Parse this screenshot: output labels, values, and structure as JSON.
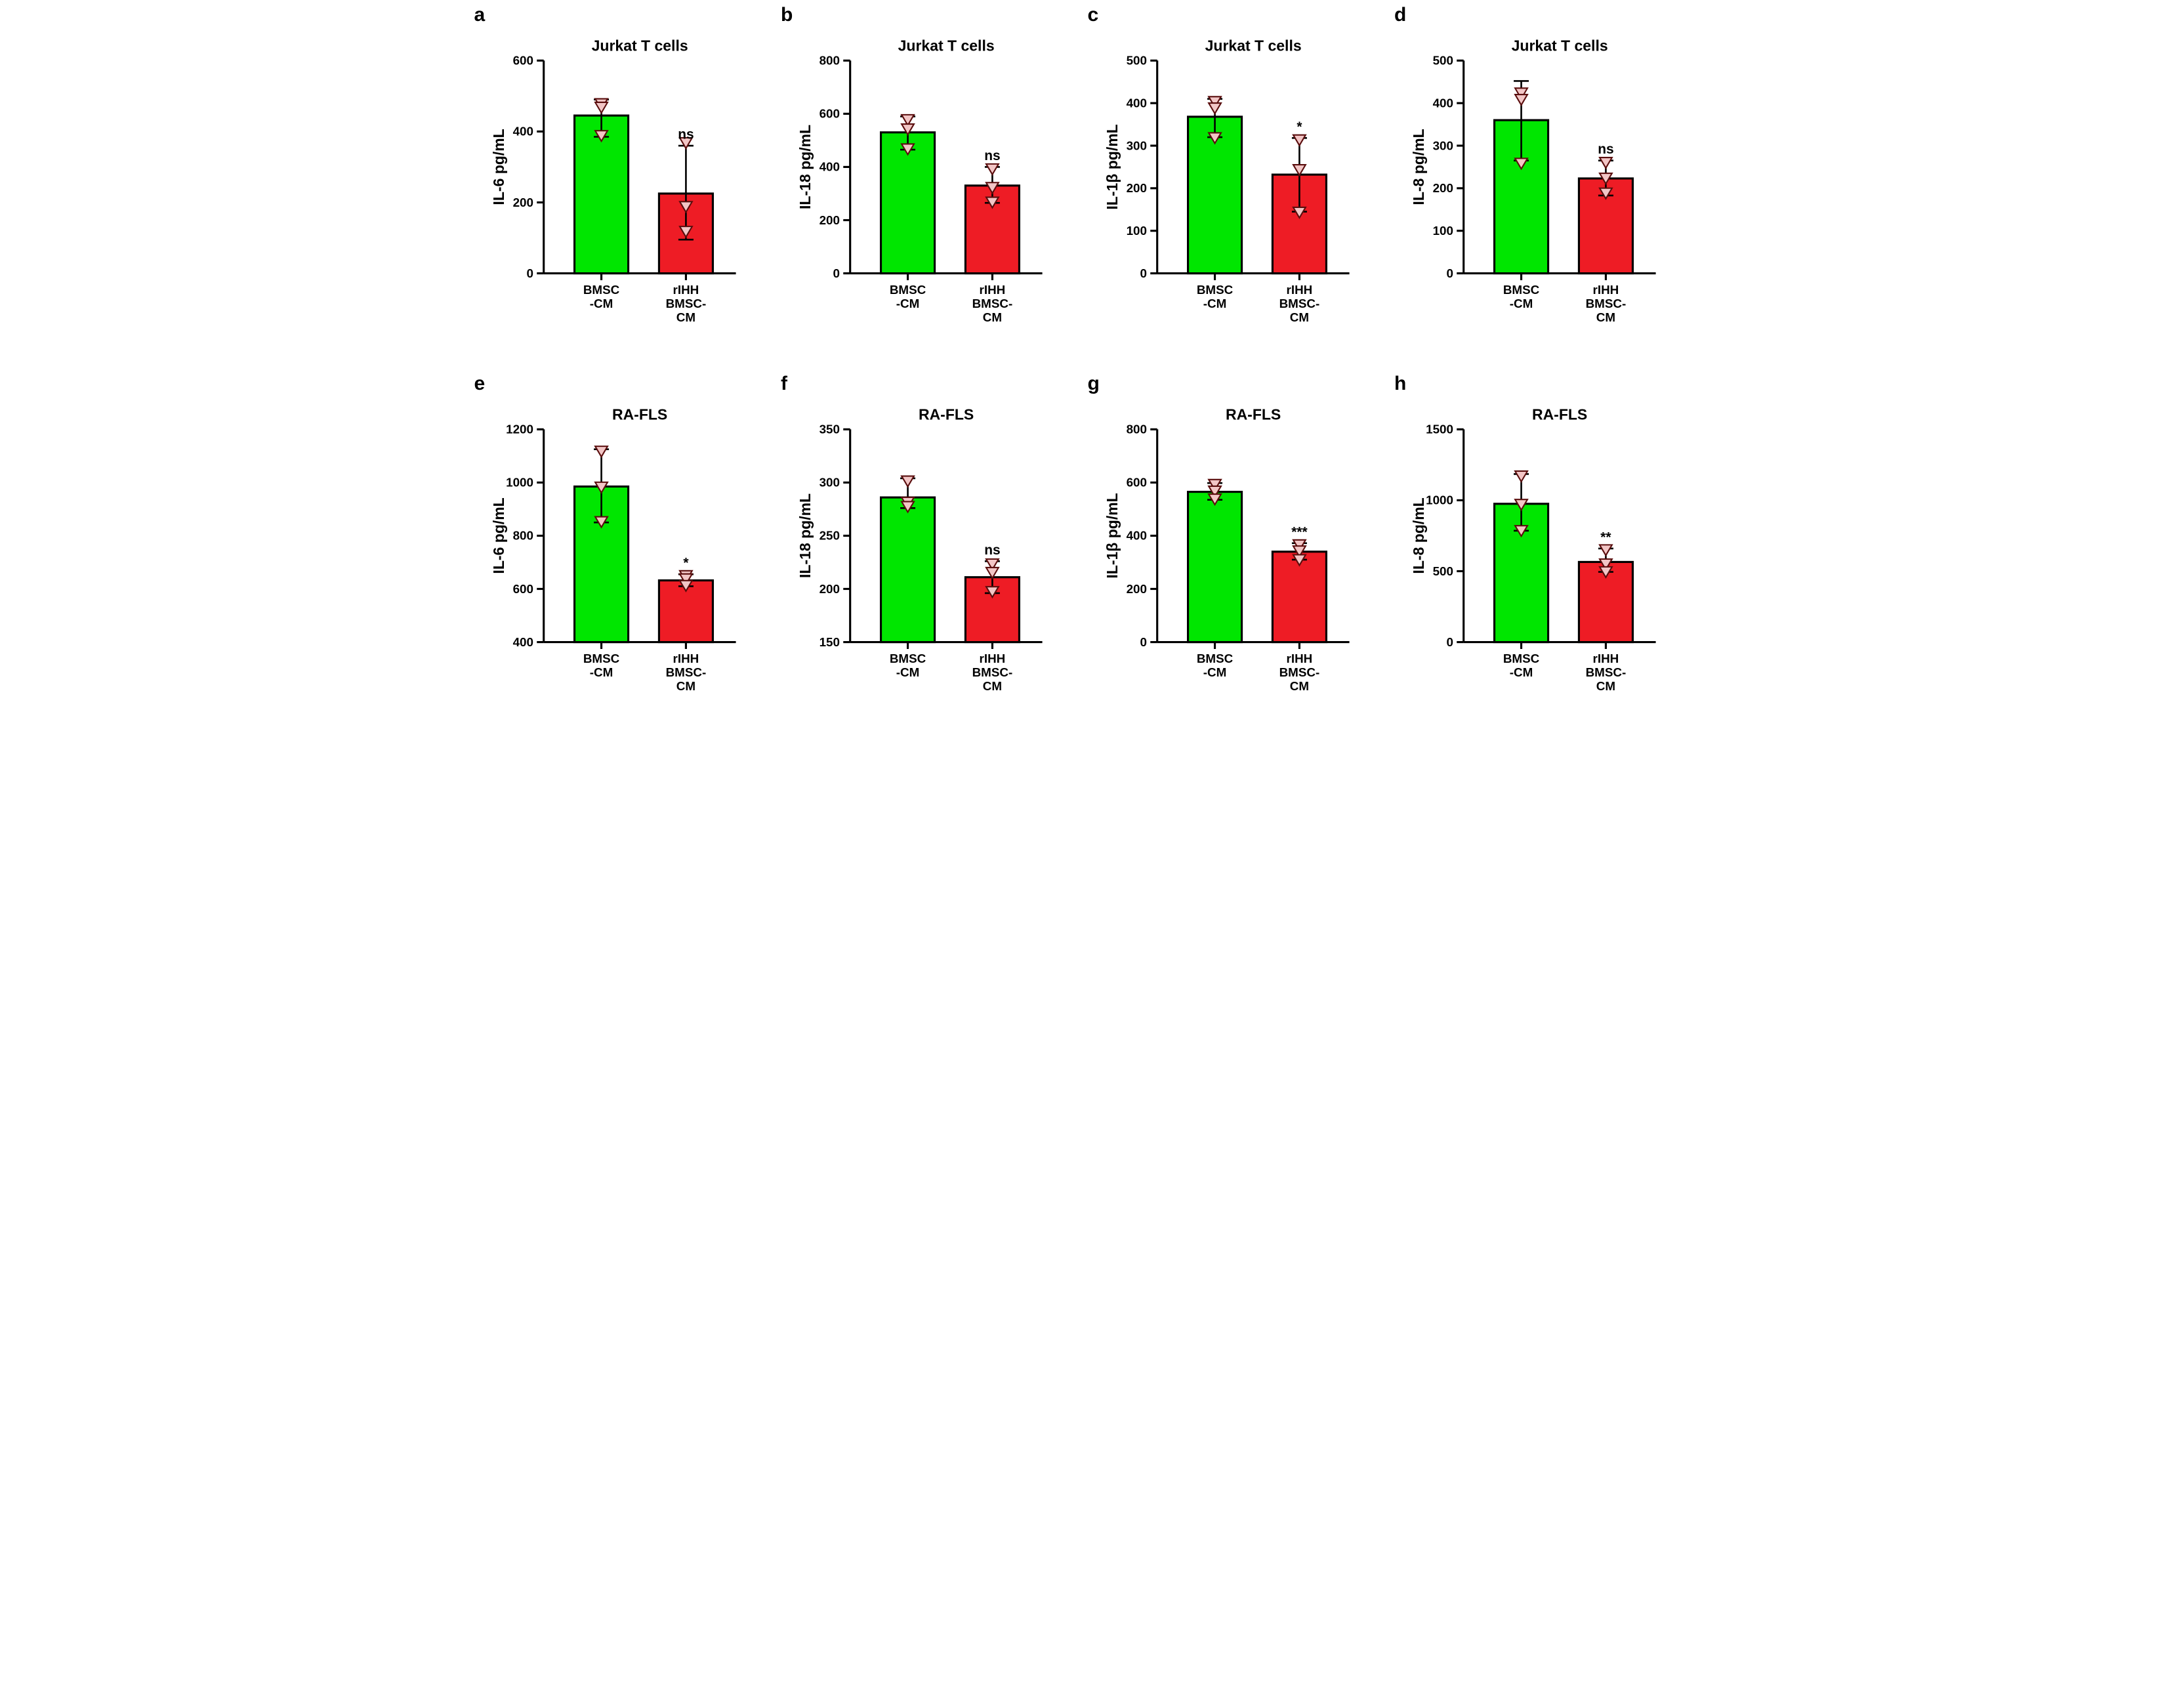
{
  "figure": {
    "panel_labels": [
      "a",
      "b",
      "c",
      "d",
      "e",
      "f",
      "g",
      "h"
    ],
    "xLabels": [
      "BMSC\n-CM",
      "rIHH\nBMSC-\nCM"
    ],
    "xLabelFontSize": 18,
    "tickFontSize": 18,
    "titleFontSize": 22,
    "sigFontSize": 20,
    "axisStroke": "#000000",
    "axisWidth": 3,
    "barBorder": "#000000",
    "barBorderWidth": 3,
    "bar1Color": "#00e600",
    "bar2Color": "#ee1c25",
    "markerFill": "#f2c6c6",
    "markerStroke": "#5a0d0d",
    "errWidth": 2.5,
    "panels": [
      {
        "letter": "a",
        "title": "Jurkat T cells",
        "ylabel": "IL-6 pg/mL",
        "ymin": 0,
        "ymax": 600,
        "ystep": 200,
        "bar1": {
          "mean": 445,
          "lo": 385,
          "hi": 490,
          "pts": [
            480,
            470,
            390
          ]
        },
        "bar2": {
          "mean": 225,
          "lo": 95,
          "hi": 360,
          "pts": [
            370,
            190,
            120
          ],
          "sig": "ns"
        }
      },
      {
        "letter": "b",
        "title": "Jurkat T cells",
        "ylabel": "IL-18 pg/mL",
        "ymin": 0,
        "ymax": 800,
        "ystep": 200,
        "bar1": {
          "mean": 530,
          "lo": 465,
          "hi": 590,
          "pts": [
            580,
            545,
            470
          ]
        },
        "bar2": {
          "mean": 330,
          "lo": 265,
          "hi": 400,
          "pts": [
            395,
            325,
            270
          ],
          "sig": "ns"
        }
      },
      {
        "letter": "c",
        "title": "Jurkat T cells",
        "ylabel": "IL-1β pg/mL",
        "ymin": 0,
        "ymax": 500,
        "ystep": 100,
        "bar1": {
          "mean": 368,
          "lo": 320,
          "hi": 410,
          "pts": [
            405,
            390,
            320
          ]
        },
        "bar2": {
          "mean": 232,
          "lo": 145,
          "hi": 318,
          "pts": [
            315,
            245,
            145
          ],
          "sig": "*"
        }
      },
      {
        "letter": "d",
        "title": "Jurkat T cells",
        "ylabel": "IL-8  pg/mL",
        "ymin": 0,
        "ymax": 500,
        "ystep": 100,
        "bar1": {
          "mean": 360,
          "lo": 265,
          "hi": 452,
          "pts": [
            425,
            410,
            260
          ]
        },
        "bar2": {
          "mean": 223,
          "lo": 183,
          "hi": 265,
          "pts": [
            262,
            225,
            190
          ],
          "sig": "ns"
        }
      },
      {
        "letter": "e",
        "title": "RA-FLS",
        "ylabel": "IL-6 pg/mL",
        "ymin": 400,
        "ymax": 1200,
        "ystep": 200,
        "bar1": {
          "mean": 985,
          "lo": 850,
          "hi": 1125,
          "pts": [
            1120,
            985,
            855
          ]
        },
        "bar2": {
          "mean": 632,
          "lo": 610,
          "hi": 655,
          "pts": [
            652,
            640,
            615
          ],
          "sig": "*"
        }
      },
      {
        "letter": "f",
        "title": "RA-FLS",
        "ylabel": "IL-18 pg/mL",
        "ymin": 150,
        "ymax": 350,
        "ystep": 50,
        "bar1": {
          "mean": 286,
          "lo": 276,
          "hi": 304,
          "pts": [
            302,
            282,
            278
          ]
        },
        "bar2": {
          "mean": 211,
          "lo": 196,
          "hi": 226,
          "pts": [
            224,
            216,
            198
          ],
          "sig": "ns"
        }
      },
      {
        "letter": "g",
        "title": "RA-FLS",
        "ylabel": "IL-1β pg/mL",
        "ymin": 0,
        "ymax": 800,
        "ystep": 200,
        "bar1": {
          "mean": 565,
          "lo": 535,
          "hi": 598,
          "pts": [
            595,
            570,
            540
          ]
        },
        "bar2": {
          "mean": 340,
          "lo": 310,
          "hi": 372,
          "pts": [
            368,
            345,
            312
          ],
          "sig": "***"
        }
      },
      {
        "letter": "h",
        "title": "RA-FLS",
        "ylabel": "IL-8  pg/mL",
        "ymin": 0,
        "ymax": 1500,
        "ystep": 500,
        "bar1": {
          "mean": 975,
          "lo": 785,
          "hi": 1185,
          "pts": [
            1175,
            975,
            790
          ]
        },
        "bar2": {
          "mean": 565,
          "lo": 495,
          "hi": 660,
          "pts": [
            655,
            555,
            500
          ],
          "sig": "**"
        }
      }
    ]
  }
}
